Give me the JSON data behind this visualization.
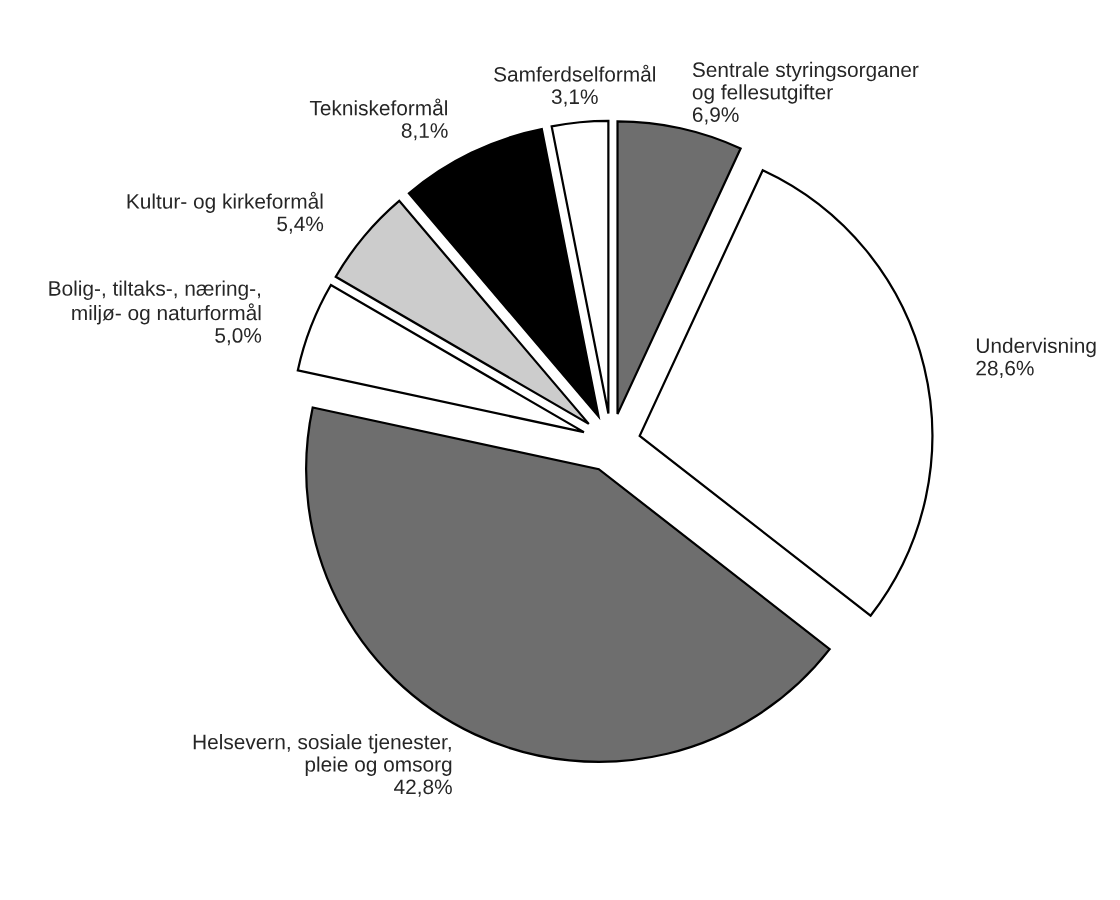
{
  "chart_data": {
    "type": "pie",
    "categories": [
      "Sentrale styringsorganer\nog fellesutgifter",
      "Undervisning",
      "Helsevern, sosiale tjenester,\npleie og omsorg",
      "Bolig-, tiltaks-, næring-,\nmiljø- og naturformål",
      "Kultur- og kirkeformål",
      "Tekniskeformål",
      "Samferdselformål"
    ],
    "values": [
      6.9,
      28.6,
      42.8,
      5.0,
      5.4,
      8.1,
      3.1
    ],
    "value_labels": [
      "6,9%",
      "28,6%",
      "42,8%",
      "5,0%",
      "5,4%",
      "8,1%",
      "3,1%"
    ],
    "colors": [
      "#6e6e6e",
      "#ffffff",
      "#6e6e6e",
      "#ffffff",
      "#cccccc",
      "#000000",
      "#ffffff"
    ],
    "legend": false
  }
}
